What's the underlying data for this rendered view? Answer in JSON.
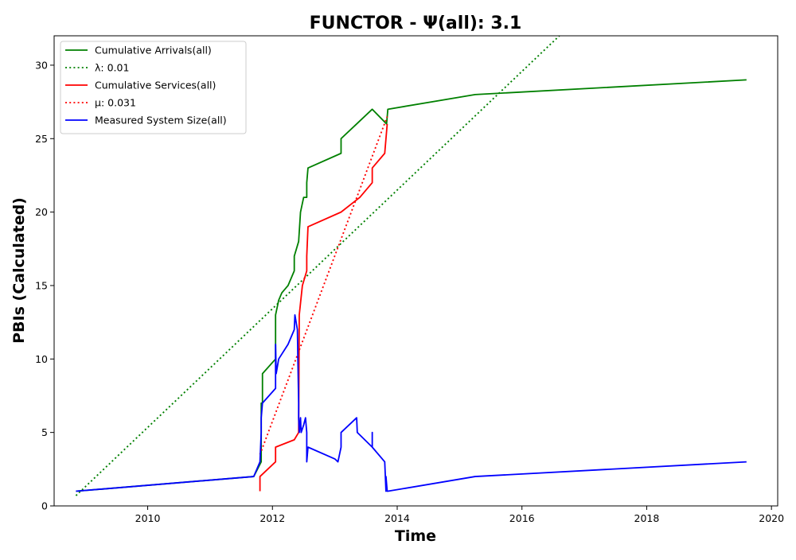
{
  "chart_data": {
    "type": "line",
    "title": "FUNCTOR -  Ψ(all): 3.1",
    "xlabel": "Time",
    "ylabel": "PBIs (Calculated)",
    "xlim": [
      2008.5,
      2020.1
    ],
    "ylim": [
      0,
      32
    ],
    "x_ticks": [
      2010,
      2012,
      2014,
      2016,
      2018,
      2020
    ],
    "x_tick_labels": [
      "2010",
      "2012",
      "2014",
      "2016",
      "2018",
      "2020"
    ],
    "y_ticks": [
      0,
      5,
      10,
      15,
      20,
      25,
      30
    ],
    "y_tick_labels": [
      "0",
      "5",
      "10",
      "15",
      "20",
      "25",
      "30"
    ],
    "grid": false,
    "legend_position": "top-left",
    "series": [
      {
        "name": "Cumulative Arrivals(all)",
        "color": "#008000",
        "style": "solid",
        "x": [
          2008.85,
          2011.7,
          2011.82,
          2011.82,
          2011.84,
          2011.84,
          2012.05,
          2012.05,
          2012.1,
          2012.15,
          2012.25,
          2012.35,
          2012.35,
          2012.42,
          2012.45,
          2012.5,
          2012.55,
          2012.55,
          2012.57,
          2013.1,
          2013.1,
          2013.35,
          2013.6,
          2013.83,
          2013.85,
          2015.25,
          2019.6
        ],
        "y": [
          1,
          2,
          3,
          7,
          7,
          9,
          10,
          13,
          14,
          14.5,
          15,
          16,
          17,
          18,
          20,
          21,
          21,
          22,
          23,
          24,
          25,
          26,
          27,
          26,
          27,
          28,
          29
        ]
      },
      {
        "name": "λ: 0.01",
        "color": "#008000",
        "style": "dotted",
        "x": [
          2008.85,
          2016.6
        ],
        "y": [
          0.7,
          32
        ]
      },
      {
        "name": "Cumulative Services(all)",
        "color": "#ff0000",
        "style": "solid",
        "x": [
          2011.8,
          2011.8,
          2012.05,
          2012.05,
          2012.35,
          2012.42,
          2012.43,
          2012.48,
          2012.55,
          2012.55,
          2012.57,
          2013.1,
          2013.4,
          2013.6,
          2013.6,
          2013.8,
          2013.82,
          2013.84
        ],
        "y": [
          1,
          2,
          3,
          4,
          4.5,
          5,
          13,
          15,
          16,
          17,
          19,
          20,
          21,
          22,
          23,
          24,
          25,
          26
        ]
      },
      {
        "name": "μ: 0.031",
        "color": "#ff0000",
        "style": "dotted",
        "x": [
          2011.8,
          2013.84
        ],
        "y": [
          3.5,
          26.5
        ]
      },
      {
        "name": "Measured System Size(all)",
        "color": "#0000ff",
        "style": "solid",
        "x": [
          2008.85,
          2011.7,
          2011.8,
          2011.82,
          2011.82,
          2011.84,
          2012.05,
          2012.05,
          2012.06,
          2012.1,
          2012.25,
          2012.35,
          2012.36,
          2012.4,
          2012.42,
          2012.42,
          2012.43,
          2012.45,
          2012.46,
          2012.5,
          2012.53,
          2012.55,
          2012.55,
          2012.57,
          2013.0,
          2013.05,
          2013.1,
          2013.1,
          2013.35,
          2013.36,
          2013.6,
          2013.6,
          2013.6,
          2013.8,
          2013.82,
          2013.82,
          2013.84,
          2013.85,
          2015.25,
          2019.6
        ],
        "y": [
          1,
          2,
          3,
          5,
          6,
          7,
          8,
          11,
          9,
          10,
          11,
          12,
          13,
          12,
          7,
          6,
          5,
          6,
          5,
          5.5,
          6,
          5,
          3,
          4,
          3.2,
          3,
          4,
          5,
          6,
          5,
          4,
          5,
          4,
          3,
          1,
          2,
          1,
          1,
          2,
          3
        ]
      }
    ]
  }
}
